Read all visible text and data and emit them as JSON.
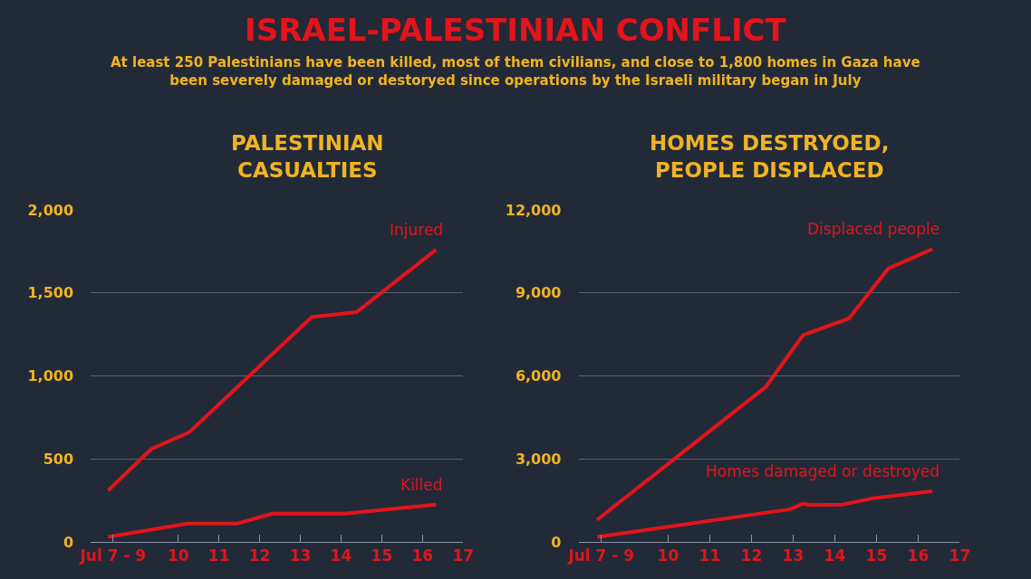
{
  "chart_data": [
    {
      "type": "line",
      "title": "PALESTINIAN CASUALTIES",
      "annotations": [
        "ISRAEL-PALESTINIAN CONFLICT",
        "At least 250 Palestinians have been killed, most of them civilians, and close to 1,800 homes in Gaza have been severely damaged or destoryed since operations by the Israeli military began in July"
      ],
      "xlim": [
        7.85,
        17
      ],
      "xticks": [
        {
          "value": 8.4,
          "label": "Jul 7 - 9"
        },
        10,
        11,
        12,
        13,
        14,
        15,
        16,
        17
      ],
      "ylim": [
        0,
        2000
      ],
      "yticks": [
        {
          "value": 0,
          "label": "0"
        },
        {
          "value": 500,
          "label": "500"
        },
        {
          "value": 1000,
          "label": "1,000"
        },
        {
          "value": 1500,
          "label": "1,500"
        },
        {
          "value": 2000,
          "label": "2,000"
        }
      ],
      "grid": "y",
      "legend": false,
      "marker": "none",
      "line_style": "solid",
      "series": [
        {
          "name": "Injured",
          "color": "#e3141b",
          "x": [
            8.28,
            9.34,
            10.27,
            13.28,
            14.38,
            16.33
          ],
          "values": [
            310,
            560,
            660,
            1355,
            1385,
            1760
          ]
        },
        {
          "name": "Killed",
          "color": "#e3141b",
          "x": [
            8.28,
            10.23,
            11.45,
            12.31,
            14.08,
            16.33
          ],
          "values": [
            30,
            110,
            110,
            170,
            170,
            225
          ]
        }
      ]
    },
    {
      "type": "line",
      "title": "HOMES DESTRYOED, PEOPLE DISPLACED",
      "xlim": [
        7.85,
        17
      ],
      "xticks": [
        {
          "value": 8.4,
          "label": "Jul 7 - 9"
        },
        10,
        11,
        12,
        13,
        14,
        15,
        16,
        17
      ],
      "ylim": [
        0,
        12000
      ],
      "yticks": [
        {
          "value": 0,
          "label": "0"
        },
        {
          "value": 3000,
          "label": "3,000"
        },
        {
          "value": 6000,
          "label": "6,000"
        },
        {
          "value": 9000,
          "label": "9,000"
        },
        {
          "value": 12000,
          "label": "12,000"
        }
      ],
      "grid": "y",
      "legend": false,
      "marker": "none",
      "line_style": "solid",
      "series": [
        {
          "name": "Displaced people",
          "color": "#e3141b",
          "x": [
            8.3,
            12.34,
            13.24,
            14.34,
            15.28,
            16.34
          ],
          "values": [
            800,
            5600,
            7480,
            8080,
            9880,
            10590
          ]
        },
        {
          "name": "Homes damaged or destroyed",
          "color": "#e3141b",
          "x": [
            8.3,
            12.93,
            13.24,
            13.4,
            14.18,
            14.93,
            16.34
          ],
          "values": [
            180,
            1180,
            1385,
            1330,
            1350,
            1580,
            1830
          ]
        }
      ]
    }
  ]
}
